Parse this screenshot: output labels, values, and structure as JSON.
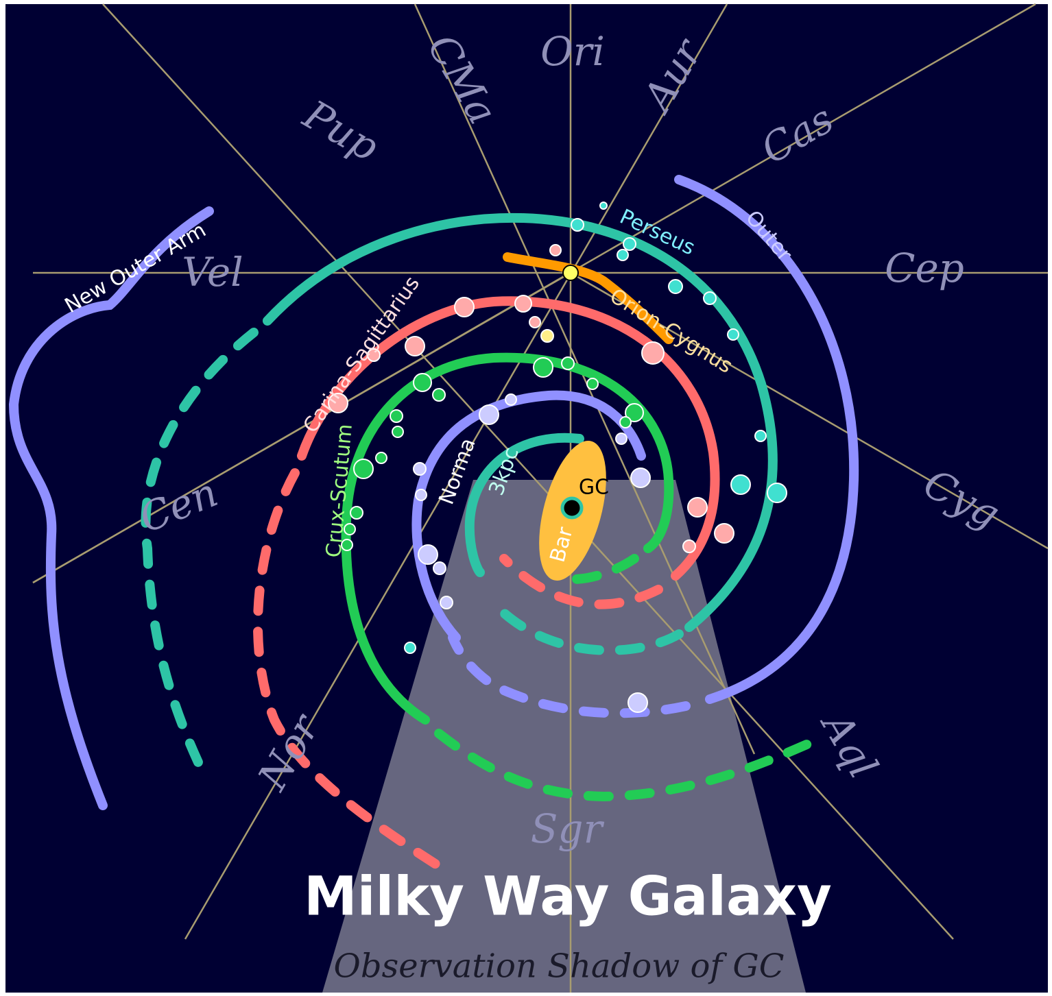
{
  "title": "Milky Way Galaxy",
  "subtitle": "Observation Shadow of GC",
  "constellations": [
    "Ori",
    "CMa",
    "Aur",
    "Pup",
    "Cas",
    "Vel",
    "Cep",
    "Cen",
    "Cyg",
    "Nor",
    "Aql",
    "Sgr"
  ],
  "arms": [
    "New Outer Arm",
    "Perseus",
    "Outer",
    "Orion-Cygnus",
    "Carina-Sagittarius",
    "Crux-Scutum",
    "Norma",
    "3kpc"
  ],
  "center": {
    "bar": "Bar",
    "gc": "GC"
  }
}
